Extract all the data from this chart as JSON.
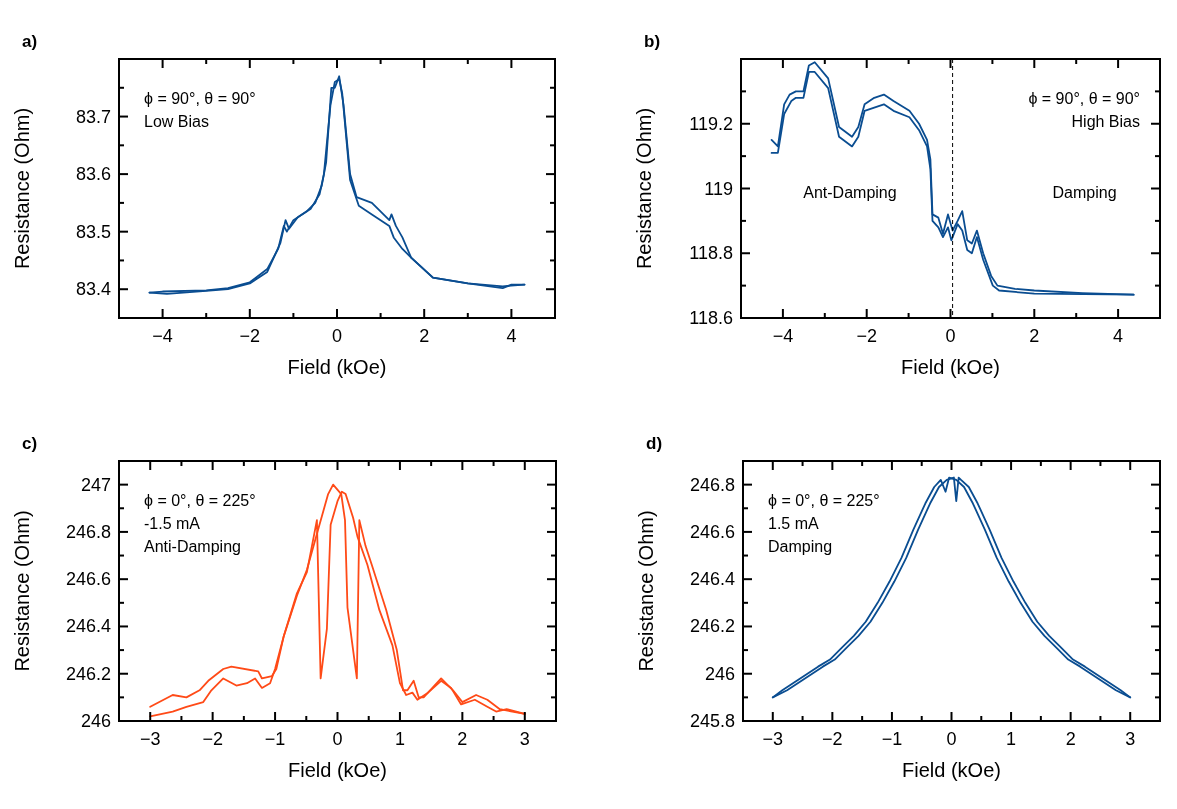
{
  "chart_data": [
    {
      "type": "line",
      "title": "a)",
      "xlabel": "Field (kOe)",
      "ylabel": "Resistance (Ohm)",
      "xlim": [
        -5,
        5
      ],
      "ylim": [
        83.35,
        83.8
      ],
      "xticks": [
        {
          "value": -4,
          "label": "−4"
        },
        {
          "value": -3,
          "label": null
        },
        {
          "value": -2,
          "label": "−2"
        },
        {
          "value": -1,
          "label": null
        },
        0,
        {
          "value": 1,
          "label": null
        },
        2,
        {
          "value": 3,
          "label": null
        },
        4
      ],
      "yticks": [
        83.4,
        {
          "value": 83.45,
          "label": null
        },
        83.5,
        {
          "value": 83.55,
          "label": null
        },
        83.6,
        {
          "value": 83.65,
          "label": null
        },
        83.7,
        {
          "value": 83.75,
          "label": null
        }
      ],
      "annotations": [
        "ϕ = 90°, θ = 90°",
        "Low Bias"
      ],
      "series": [
        {
          "color": "#0a4d91",
          "x": [
            -4.3,
            -4,
            -3,
            -2.5,
            -2,
            -1.6,
            -1.35,
            -1.22,
            -1.15,
            -1,
            -0.7,
            -0.5,
            -0.35,
            -0.25,
            -0.13,
            -0.05,
            0.05,
            0.15,
            0.3,
            0.45,
            0.8,
            1.2,
            1.25,
            1.35,
            1.5,
            1.7,
            2.2,
            3,
            3.8,
            4.3
          ],
          "values": [
            83.394,
            83.396,
            83.398,
            83.402,
            83.412,
            83.435,
            83.47,
            83.51,
            83.5,
            83.52,
            83.535,
            83.55,
            83.58,
            83.62,
            83.75,
            83.75,
            83.77,
            83.72,
            83.6,
            83.56,
            83.55,
            83.52,
            83.53,
            83.51,
            83.49,
            83.455,
            83.42,
            83.41,
            83.405,
            83.408
          ]
        },
        {
          "color": "#0a4d91",
          "x": [
            -4.3,
            -3.9,
            -3,
            -2.5,
            -2,
            -1.6,
            -1.3,
            -1.18,
            -1.1,
            -0.9,
            -0.6,
            -0.4,
            -0.3,
            -0.15,
            -0.05,
            0.05,
            0.12,
            0.3,
            0.5,
            0.8,
            1.2,
            1.3,
            1.5,
            1.7,
            2.2,
            3,
            3.8,
            4,
            4.3
          ],
          "values": [
            83.394,
            83.392,
            83.397,
            83.4,
            83.41,
            83.43,
            83.48,
            83.52,
            83.505,
            83.525,
            83.54,
            83.565,
            83.6,
            83.72,
            83.76,
            83.765,
            83.74,
            83.59,
            83.545,
            83.53,
            83.51,
            83.49,
            83.47,
            83.455,
            83.42,
            83.41,
            83.402,
            83.408,
            83.408
          ]
        }
      ]
    },
    {
      "type": "line",
      "title": "b)",
      "xlabel": "Field (kOe)",
      "ylabel": "Resistance (Ohm)",
      "xlim": [
        -5,
        5
      ],
      "ylim": [
        118.6,
        119.4
      ],
      "xticks": [
        {
          "value": -4,
          "label": "−4"
        },
        {
          "value": -3,
          "label": null
        },
        {
          "value": -2,
          "label": "−2"
        },
        {
          "value": -1,
          "label": null
        },
        0,
        {
          "value": 1,
          "label": null
        },
        2,
        {
          "value": 3,
          "label": null
        },
        4
      ],
      "yticks": [
        118.6,
        {
          "value": 118.7,
          "label": null
        },
        118.8,
        {
          "value": 118.9,
          "label": null
        },
        119,
        {
          "value": 119.1,
          "label": null
        },
        119.2,
        {
          "value": 119.3,
          "label": null
        }
      ],
      "annotations": [
        "ϕ = 90°, θ = 90°",
        "High Bias",
        "Ant-Damping",
        "Damping"
      ],
      "ref_lines": [
        {
          "axis": "x",
          "value": 0.05,
          "color": "#000000",
          "line_style": "dashed"
        }
      ],
      "series": [
        {
          "color": "#0a4d91",
          "x": [
            -4.27,
            -4.12,
            -3.97,
            -3.84,
            -3.69,
            -3.51,
            -3.38,
            -3.24,
            -2.92,
            -2.66,
            -2.35,
            -2.2,
            -2.05,
            -1.82,
            -1.59,
            -1.36,
            -0.98,
            -0.75,
            -0.56,
            -0.48,
            -0.43,
            -0.29,
            -0.18,
            -0.06,
            0.05,
            0.17,
            0.28,
            0.4,
            0.51,
            0.63,
            0.78,
            0.97,
            1.12,
            1.54,
            2,
            3.15,
            4.37
          ],
          "values": [
            119.15,
            119.13,
            119.26,
            119.29,
            119.3,
            119.3,
            119.38,
            119.39,
            119.34,
            119.19,
            119.16,
            119.19,
            119.26,
            119.28,
            119.29,
            119.27,
            119.24,
            119.2,
            119.15,
            119.09,
            118.92,
            118.91,
            118.86,
            118.92,
            118.87,
            118.9,
            118.93,
            118.84,
            118.83,
            118.87,
            118.8,
            118.73,
            118.7,
            118.69,
            118.685,
            118.677,
            118.672
          ]
        },
        {
          "color": "#0a4d91",
          "x": [
            -4.27,
            -4.12,
            -3.97,
            -3.8,
            -3.69,
            -3.51,
            -3.38,
            -3.24,
            -2.92,
            -2.66,
            -2.35,
            -2.2,
            -2.05,
            -1.82,
            -1.59,
            -1.36,
            -0.98,
            -0.75,
            -0.56,
            -0.48,
            -0.43,
            -0.29,
            -0.18,
            -0.06,
            0.02,
            0.17,
            0.28,
            0.4,
            0.51,
            0.63,
            0.78,
            1.01,
            1.16,
            2,
            4.37
          ],
          "values": [
            119.11,
            119.11,
            119.23,
            119.27,
            119.28,
            119.28,
            119.36,
            119.36,
            119.31,
            119.16,
            119.13,
            119.16,
            119.24,
            119.25,
            119.26,
            119.24,
            119.22,
            119.18,
            119.13,
            119.06,
            118.9,
            118.88,
            118.85,
            118.88,
            118.84,
            118.89,
            118.87,
            118.81,
            118.8,
            118.85,
            118.78,
            118.7,
            118.685,
            118.675,
            118.672
          ]
        }
      ]
    },
    {
      "type": "line",
      "title": "c)",
      "xlabel": "Field (kOe)",
      "ylabel": "Resistance (Ohm)",
      "xlim": [
        -3.5,
        3.5
      ],
      "ylim": [
        246,
        247.1
      ],
      "xticks": [
        {
          "value": -3,
          "label": "−3"
        },
        {
          "value": -2.5,
          "label": null
        },
        {
          "value": -2,
          "label": "−2"
        },
        {
          "value": -1.5,
          "label": null
        },
        {
          "value": -1,
          "label": "−1"
        },
        {
          "value": -0.5,
          "label": null
        },
        0,
        {
          "value": 0.5,
          "label": null
        },
        1,
        {
          "value": 1.5,
          "label": null
        },
        2,
        {
          "value": 2.5,
          "label": null
        },
        3
      ],
      "yticks": [
        246,
        {
          "value": 246.1,
          "label": null
        },
        246.2,
        {
          "value": 246.3,
          "label": null
        },
        246.4,
        {
          "value": 246.5,
          "label": null
        },
        246.6,
        {
          "value": 246.7,
          "label": null
        },
        246.8,
        {
          "value": 246.9,
          "label": null
        },
        247
      ],
      "annotations": [
        "ϕ = 0°, θ = 225°",
        "-1.5 mA",
        "Anti-Damping"
      ],
      "series": [
        {
          "color": "#ff4a17",
          "x": [
            -3,
            -2.64,
            -2.42,
            -2.21,
            -2.07,
            -1.83,
            -1.7,
            -1.27,
            -1.21,
            -1.05,
            -0.98,
            -0.86,
            -0.65,
            -0.49,
            -0.3,
            -0.15,
            -0.07,
            0.06,
            0.12,
            0.16,
            0.31,
            0.35,
            0.45,
            0.55,
            0.78,
            0.95,
            1.05,
            1.12,
            1.22,
            1.3,
            1.38,
            1.66,
            1.85,
            2,
            2.22,
            2.4,
            2.6,
            2.8,
            3
          ],
          "values": [
            246.06,
            246.11,
            246.1,
            246.13,
            246.17,
            246.22,
            246.23,
            246.21,
            246.18,
            246.19,
            246.22,
            246.36,
            246.53,
            246.64,
            246.82,
            246.96,
            247,
            246.96,
            246.85,
            246.48,
            246.18,
            246.85,
            246.74,
            246.66,
            246.47,
            246.3,
            246.13,
            246.13,
            246.17,
            246.1,
            246.1,
            246.18,
            246.13,
            246.08,
            246.11,
            246.09,
            246.05,
            246.04,
            246.03
          ]
        },
        {
          "color": "#ff4a17",
          "x": [
            -3,
            -2.64,
            -2.42,
            -2.15,
            -2.02,
            -1.83,
            -1.62,
            -1.45,
            -1.32,
            -1.21,
            -1.08,
            -1,
            -0.86,
            -0.65,
            -0.49,
            -0.33,
            -0.27,
            -0.17,
            -0.11,
            0,
            0.07,
            0.13,
            0.25,
            0.32,
            0.48,
            0.67,
            0.88,
            1,
            1.1,
            1.2,
            1.28,
            1.45,
            1.66,
            1.82,
            1.98,
            2.2,
            2.4,
            2.54,
            2.71,
            3
          ],
          "values": [
            246.02,
            246.04,
            246.06,
            246.08,
            246.13,
            246.18,
            246.15,
            246.16,
            246.18,
            246.14,
            246.16,
            246.22,
            246.36,
            246.54,
            246.63,
            246.85,
            246.18,
            246.39,
            246.83,
            246.93,
            246.97,
            246.96,
            246.86,
            246.78,
            246.66,
            246.47,
            246.32,
            246.16,
            246.11,
            246.12,
            246.09,
            246.12,
            246.17,
            246.14,
            246.07,
            246.09,
            246.06,
            246.04,
            246.05,
            246.03
          ]
        }
      ]
    },
    {
      "type": "line",
      "title": "d)",
      "xlabel": "Field (kOe)",
      "ylabel": "Resistance (Ohm)",
      "xlim": [
        -3.5,
        3.5
      ],
      "ylim": [
        245.8,
        246.9
      ],
      "xticks": [
        {
          "value": -3,
          "label": "−3"
        },
        {
          "value": -2.5,
          "label": null
        },
        {
          "value": -2,
          "label": "−2"
        },
        {
          "value": -1.5,
          "label": null
        },
        {
          "value": -1,
          "label": "−1"
        },
        {
          "value": -0.5,
          "label": null
        },
        0,
        {
          "value": 0.5,
          "label": null
        },
        1,
        {
          "value": 1.5,
          "label": null
        },
        2,
        {
          "value": 2.5,
          "label": null
        },
        3
      ],
      "yticks": [
        245.8,
        {
          "value": 245.9,
          "label": null
        },
        246,
        {
          "value": 246.1,
          "label": null
        },
        246.2,
        {
          "value": 246.3,
          "label": null
        },
        246.4,
        {
          "value": 246.5,
          "label": null
        },
        246.6,
        {
          "value": 246.7,
          "label": null
        },
        246.8
      ],
      "annotations": [
        "ϕ = 0°, θ = 225°",
        "1.5 mA",
        "Damping"
      ],
      "series": [
        {
          "color": "#0a4d91",
          "x": [
            -3,
            -2.84,
            -2.54,
            -2.24,
            -2.04,
            -1.84,
            -1.64,
            -1.44,
            -1.24,
            -1.04,
            -0.84,
            -0.64,
            -0.44,
            -0.29,
            -0.18,
            -0.1,
            -0.04,
            0.08,
            0.21,
            0.36,
            0.56,
            0.76,
            0.96,
            1.16,
            1.36,
            1.56,
            1.76,
            1.96,
            2.16,
            2.46,
            2.76,
            3
          ],
          "values": [
            245.9,
            245.93,
            245.98,
            246.03,
            246.06,
            246.11,
            246.16,
            246.22,
            246.3,
            246.39,
            246.49,
            246.61,
            246.72,
            246.79,
            246.82,
            246.77,
            246.83,
            246.82,
            246.79,
            246.72,
            246.61,
            246.49,
            246.39,
            246.3,
            246.22,
            246.16,
            246.11,
            246.06,
            246.03,
            245.98,
            245.93,
            245.9
          ]
        },
        {
          "color": "#0a4d91",
          "x": [
            -3,
            -2.76,
            -2.46,
            -2.16,
            -1.96,
            -1.76,
            -1.56,
            -1.36,
            -1.16,
            -0.96,
            -0.76,
            -0.56,
            -0.36,
            -0.21,
            -0.08,
            0.04,
            0.08,
            0.12,
            0.16,
            0.29,
            0.44,
            0.64,
            0.84,
            1.04,
            1.24,
            1.44,
            1.64,
            1.84,
            2.04,
            2.24,
            2.54,
            2.84,
            3
          ],
          "values": [
            245.9,
            245.93,
            245.98,
            246.03,
            246.06,
            246.11,
            246.16,
            246.22,
            246.3,
            246.39,
            246.49,
            246.61,
            246.72,
            246.79,
            246.82,
            246.83,
            246.73,
            246.83,
            246.82,
            246.79,
            246.72,
            246.61,
            246.49,
            246.39,
            246.3,
            246.22,
            246.16,
            246.11,
            246.06,
            246.03,
            245.98,
            245.93,
            245.9
          ]
        }
      ]
    }
  ]
}
